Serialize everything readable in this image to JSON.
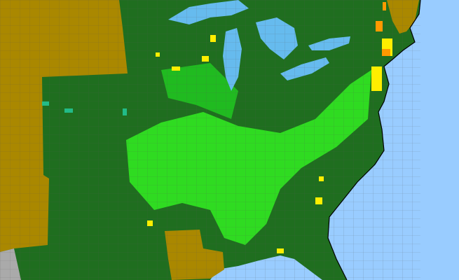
{
  "map": {
    "colors": {
      "ocean": "#99ccff",
      "lake": "#66bbee",
      "land_present": "#1f6e1f",
      "land_absent": "#aa8800",
      "county_highlight": "#22ee22",
      "county_light": "#66ff44",
      "county_yellow": "#ffee00",
      "county_orange": "#ff9900",
      "county_teal": "#22bb88",
      "foreign": "#aaaaaa",
      "county_lines": "#555555"
    }
  }
}
